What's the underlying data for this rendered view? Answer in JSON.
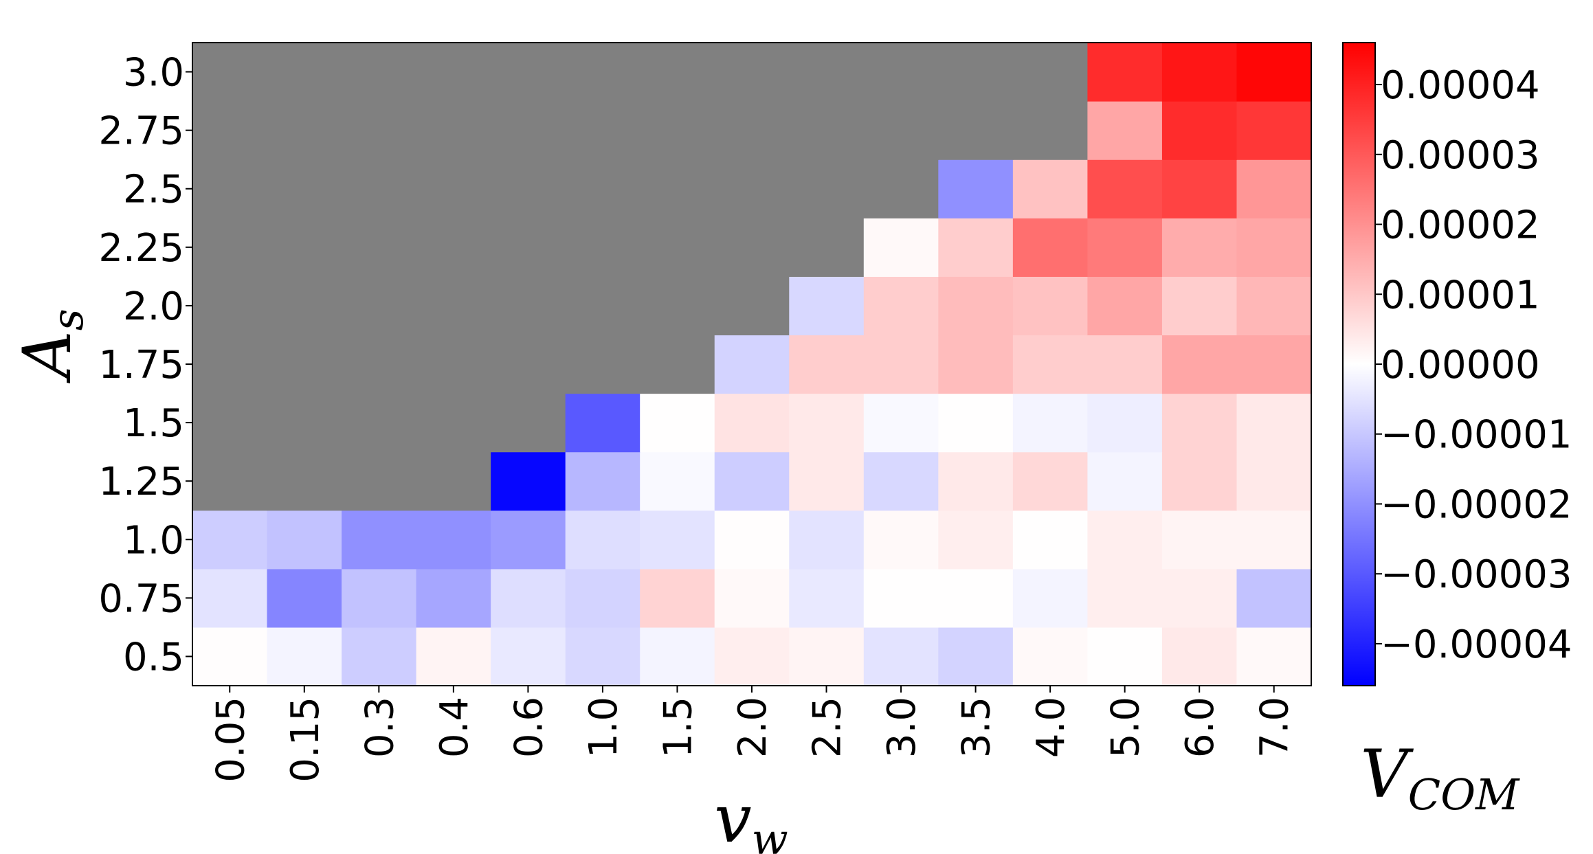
{
  "chart_data": {
    "type": "heatmap",
    "title": "",
    "xlabel": "v_w",
    "ylabel": "A_s",
    "colorbar_label": "V_COM",
    "x_categories": [
      "0.05",
      "0.15",
      "0.3",
      "0.4",
      "0.6",
      "1.0",
      "1.5",
      "2.0",
      "2.5",
      "3.0",
      "3.5",
      "4.0",
      "5.0",
      "6.0",
      "7.0"
    ],
    "y_categories": [
      "0.5",
      "0.75",
      "1.0",
      "1.25",
      "1.5",
      "1.75",
      "2.0",
      "2.25",
      "2.5",
      "2.75",
      "3.0"
    ],
    "values": [
      [
        3e-07,
        -2e-06,
        -9e-06,
        2e-06,
        -4e-06,
        -7e-06,
        -2e-06,
        3e-06,
        2e-06,
        -5e-06,
        -8e-06,
        1e-06,
        2e-07,
        4e-06,
        1e-06
      ],
      [
        -5e-06,
        -2.2e-05,
        -1.1e-05,
        -1.6e-05,
        -6e-06,
        -8e-06,
        8e-06,
        1e-06,
        -4e-06,
        2e-07,
        2e-07,
        -2e-06,
        3e-06,
        3e-06,
        -1.1e-05
      ],
      [
        -9e-06,
        -1.1e-05,
        -2e-05,
        -2e-05,
        -1.8e-05,
        -6e-06,
        -5e-06,
        3e-07,
        -5e-06,
        1e-06,
        3e-06,
        2e-07,
        3e-06,
        2e-06,
        2e-06
      ],
      [
        null,
        null,
        null,
        null,
        -4.5e-05,
        -1.3e-05,
        -1e-06,
        -9e-06,
        4e-06,
        -7e-06,
        4e-06,
        7e-06,
        -2e-06,
        8e-06,
        4e-06
      ],
      [
        null,
        null,
        null,
        null,
        null,
        -3e-05,
        2e-07,
        5e-06,
        4e-06,
        -1e-06,
        2e-07,
        -2e-06,
        -3e-06,
        8e-06,
        4e-06
      ],
      [
        null,
        null,
        null,
        null,
        null,
        null,
        null,
        -8e-06,
        9e-06,
        9e-06,
        1.2e-05,
        9e-06,
        9e-06,
        1.6e-05,
        1.6e-05
      ],
      [
        null,
        null,
        null,
        null,
        null,
        null,
        null,
        null,
        -7e-06,
        9e-06,
        1.2e-05,
        1.1e-05,
        1.6e-05,
        9e-06,
        1.3e-05
      ],
      [
        null,
        null,
        null,
        null,
        null,
        null,
        null,
        null,
        null,
        1e-06,
        9e-06,
        2.6e-05,
        2.4e-05,
        1.5e-05,
        1.6e-05
      ],
      [
        null,
        null,
        null,
        null,
        null,
        null,
        null,
        null,
        null,
        null,
        -2e-05,
        1.1e-05,
        3.2e-05,
        3.4e-05,
        1.9e-05
      ],
      [
        null,
        null,
        null,
        null,
        null,
        null,
        null,
        null,
        null,
        null,
        null,
        null,
        1.6e-05,
        3.8e-05,
        3.6e-05
      ],
      [
        null,
        null,
        null,
        null,
        null,
        null,
        null,
        null,
        null,
        null,
        null,
        null,
        3.8e-05,
        4.2e-05,
        4.5e-05
      ]
    ],
    "missing_color": "#808080",
    "colormap": "bwr",
    "colorbar_range": [
      -4.6e-05,
      4.6e-05
    ],
    "colorbar_ticks": [
      "0.00004",
      "0.00003",
      "0.00002",
      "0.00001",
      "0.00000",
      "−0.00001",
      "−0.00002",
      "−0.00003",
      "−0.00004"
    ],
    "colorbar_tick_values": [
      4e-05,
      3e-05,
      2e-05,
      1e-05,
      0,
      -1e-05,
      -2e-05,
      -3e-05,
      -4e-05
    ],
    "grid": false
  }
}
